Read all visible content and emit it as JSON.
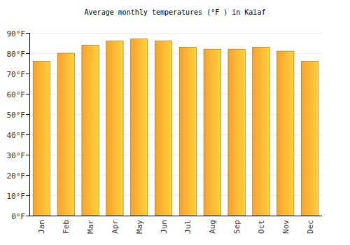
{
  "chart_data": {
    "type": "bar",
    "title": "Average monthly temperatures (°F ) in Kaiaf",
    "categories": [
      "Jan",
      "Feb",
      "Mar",
      "Apr",
      "May",
      "Jun",
      "Jul",
      "Aug",
      "Sep",
      "Oct",
      "Nov",
      "Dec"
    ],
    "values": [
      76,
      80,
      84,
      86,
      87,
      86,
      83,
      82,
      82,
      83,
      81,
      76
    ],
    "color": "#f9a12e",
    "ylim": [
      0,
      90
    ],
    "yticks": [
      {
        "value": 0,
        "label": "0°F"
      },
      {
        "value": 10,
        "label": "10°F"
      },
      {
        "value": 20,
        "label": "20°F"
      },
      {
        "value": 30,
        "label": "30°F"
      },
      {
        "value": 40,
        "label": "40°F"
      },
      {
        "value": 50,
        "label": "50°F"
      },
      {
        "value": 60,
        "label": "60°F"
      },
      {
        "value": 70,
        "label": "70°F"
      },
      {
        "value": 80,
        "label": "80°F"
      },
      {
        "value": 90,
        "label": "90°F"
      }
    ],
    "grid": true
  }
}
